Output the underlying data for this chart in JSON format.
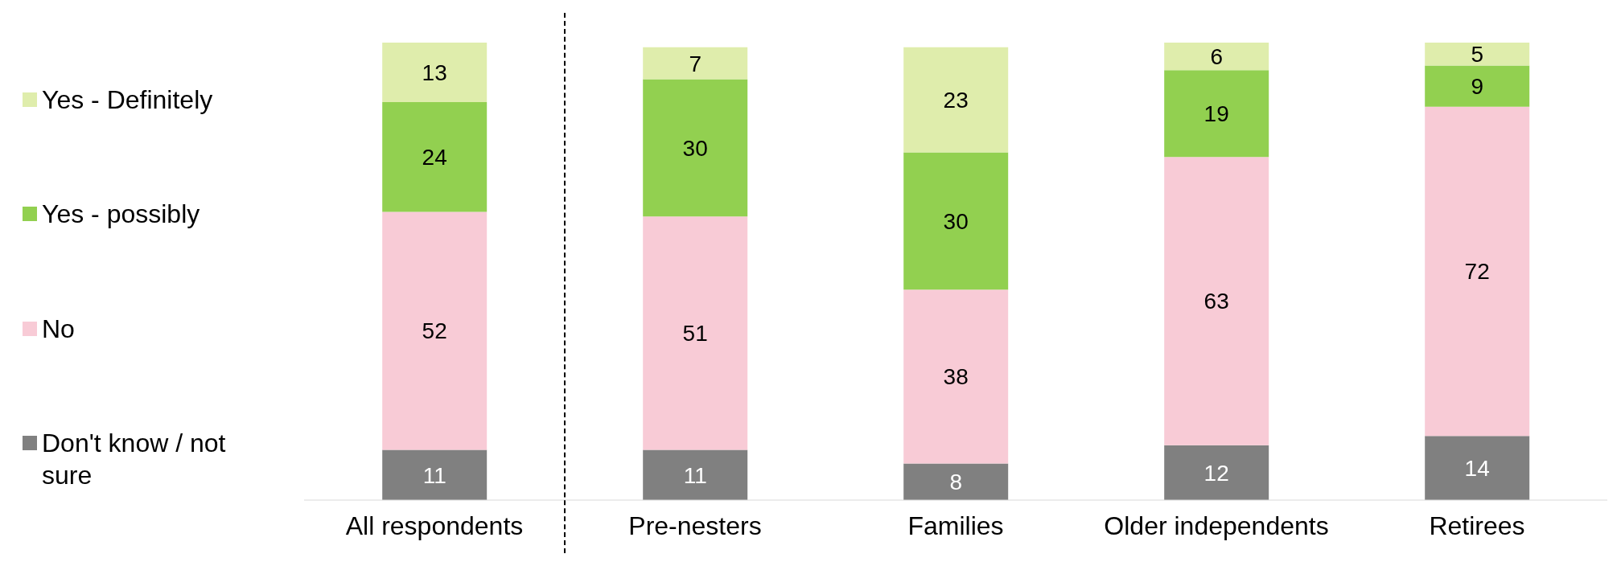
{
  "chart_data": {
    "type": "bar",
    "stacked": true,
    "data_labels": true,
    "legend": "left",
    "categories": [
      "All respondents",
      "Pre-nesters",
      "Families",
      "Older independents",
      "Retirees"
    ],
    "series": [
      {
        "name": "Don't know / not sure",
        "color": "#808080",
        "values": [
          11,
          11,
          8,
          12,
          14
        ]
      },
      {
        "name": "No",
        "color": "#f8cbd6",
        "values": [
          52,
          51,
          38,
          63,
          72
        ]
      },
      {
        "name": "Yes - possibly",
        "color": "#92d050",
        "values": [
          24,
          30,
          30,
          19,
          9
        ]
      },
      {
        "name": "Yes - Definitely",
        "color": "#dfedac",
        "values": [
          13,
          7,
          23,
          6,
          5
        ]
      }
    ]
  }
}
